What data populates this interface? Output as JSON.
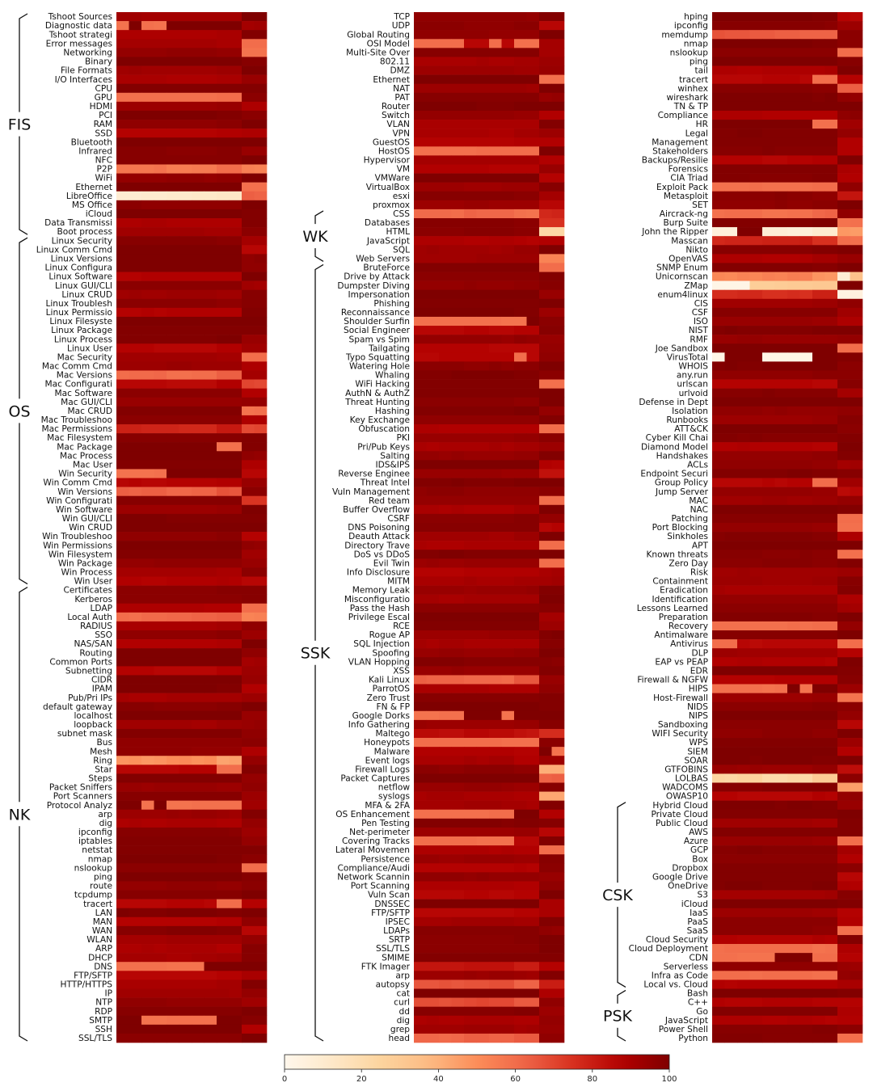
{
  "chart_data": {
    "type": "heatmap",
    "colormap": "OrRd",
    "colorbar": {
      "min": 0,
      "max": 100,
      "ticks": [
        0,
        20,
        40,
        60,
        80,
        100
      ],
      "orientation": "horizontal",
      "placement": "bottom"
    },
    "n_columns": 12,
    "panels": [
      {
        "rows": [
          "Tshoot Sources",
          "Diagnostic data",
          "Tshoot strategi",
          "Error messages",
          "Networking",
          "Binary",
          "File Formats",
          "I/O Interfaces",
          "CPU",
          "GPU",
          "HDMI",
          "PCI",
          "RAM",
          "SSD",
          "Bluetooth",
          "Infrared",
          "NFC",
          "P2P",
          "WiFi",
          "Ethernet",
          "LibreOffice",
          "MS Office",
          "iCloud",
          "Data Transmissi",
          "Boot process",
          "Linux Security",
          "Linux Comm Cmd",
          "Linux Versions",
          "Linux Configura",
          "Linux Software",
          "Linux GUI/CLI",
          "Linux CRUD",
          "Linux Troublesh",
          "Linux Permissio",
          "Linux Filesyste",
          "Linux Package",
          "Linux Process",
          "Linux User",
          "Mac Security",
          "Mac Comm Cmd",
          "Mac Versions",
          "Mac Configurati",
          "Mac Software",
          "Mac GUI/CLI",
          "Mac CRUD",
          "Mac Troubleshoo",
          "Mac Permissions",
          "Mac Filesystem",
          "Mac Package",
          "Mac Process",
          "Mac User",
          "Win Security",
          "Win Comm Cmd",
          "Win Versions",
          "Win Configurati",
          "Win Software",
          "Win GUI/CLI",
          "Win CRUD",
          "Win Troubleshoo",
          "Win Permissions",
          "Win Filesystem",
          "Win Package",
          "Win Process",
          "Win User",
          "Certificates",
          "Kerberos",
          "LDAP",
          "Local Auth",
          "RADIUS",
          "SSO",
          "NAS/SAN",
          "Routing",
          "Common Ports",
          "Subnetting",
          "CIDR",
          "IPAM",
          "Pub/Pri IPs",
          "default gateway",
          "localhost",
          "loopback",
          "subnet mask",
          "Bus",
          "Mesh",
          "Ring",
          "Star",
          "Steps",
          "Packet Sniffers",
          "Port Scanners",
          "Protocol Analyz",
          "arp",
          "dig",
          "ipconfig",
          "iptables",
          "netstat",
          "nmap",
          "nslookup",
          "ping",
          "route",
          "tcpdump",
          "tracert",
          "LAN",
          "MAN",
          "WAN",
          "WLAN",
          "ARP",
          "DHCP",
          "DNS",
          "FTP/SFTP",
          "HTTP/HTTPS",
          "IP",
          "NTP",
          "RDP",
          "SMTP",
          "SSH",
          "SSL/TLS"
        ],
        "groups": [
          {
            "name": "FIS",
            "first": "Tshoot Sources",
            "last": "Boot process"
          },
          {
            "name": "OS",
            "first": "Linux Security",
            "last": "Win User"
          },
          {
            "name": "NK",
            "first": "Certificates",
            "last": "SSL/TLS"
          }
        ]
      },
      {
        "rows": [
          "TCP",
          "UDP",
          "Global Routing",
          "OSI Model",
          "Multi-Site Over",
          "802.11",
          "DMZ",
          "Ethernet",
          "NAT",
          "PAT",
          "Router",
          "Switch",
          "VLAN",
          "VPN",
          "GuestOS",
          "HostOS",
          "Hypervisor",
          "VM",
          "VMWare",
          "VirtualBox",
          "esxi",
          "proxmox",
          "CSS",
          "Databases",
          "HTML",
          "JavaScript",
          "SQL",
          "Web Servers",
          "BruteForce",
          "Drive by Attack",
          "Dumpster Diving",
          "Impersonation",
          "Phishing",
          "Reconnaissance",
          "Shoulder Surfin",
          "Social Engineer",
          "Spam vs Spim",
          "Tailgating",
          "Typo Squatting",
          "Watering Hole",
          "Whaling",
          "WiFi Hacking",
          "AuthN & AuthZ",
          "Threat Hunting",
          "Hashing",
          "Key Exchange",
          "Obfuscation",
          "PKI",
          "Pri/Pub Keys",
          "Salting",
          "IDS&IPS",
          "Reverse Enginee",
          "Threat Intel",
          "Vuln Management",
          "Red team",
          "Buffer Overflow",
          "CSRF",
          "DNS Poisoning",
          "Deauth Attack",
          "Directory Trave",
          "DoS vs DDoS",
          "Evil Twin",
          "Info Disclosure",
          "MITM",
          "Memory Leak",
          "Misconfiguratio",
          "Pass the Hash",
          "Privilege Escal",
          "RCE",
          "Rogue AP",
          "SQL Injection",
          "Spoofing",
          "VLAN Hopping",
          "XSS",
          "Kali Linux",
          "ParrotOS",
          "Zero Trust",
          "FN & FP",
          "Google Dorks",
          "Info Gathering",
          "Maltego",
          "Honeypots",
          "Malware",
          "Event logs",
          "Firewall Logs",
          "Packet Captures",
          "netflow",
          "syslogs",
          "MFA & 2FA",
          "OS Enhancement",
          "Pen Testing",
          "Net-perimeter",
          "Covering Tracks",
          "Lateral Movemen",
          "Persistence",
          "Compliance/Audi",
          "Network Scannin",
          "Port Scanning",
          "Vuln Scan",
          "DNSSEC",
          "FTP/SFTP",
          "IPSEC",
          "LDAPs",
          "SRTP",
          "SSL/TLS",
          "SMIME",
          "FTK Imager",
          "arp",
          "autopsy",
          "cat",
          "curl",
          "dd",
          "dig",
          "grep",
          "head"
        ],
        "groups": [
          {
            "name": "WK",
            "first": "CSS",
            "last": "Web Servers"
          },
          {
            "name": "SSK",
            "first": "BruteForce",
            "last": "head"
          }
        ]
      },
      {
        "rows": [
          "hping",
          "ipconfig",
          "memdump",
          "nmap",
          "nslookup",
          "ping",
          "tail",
          "tracert",
          "winhex",
          "wireshark",
          "TN & TP",
          "Compliance",
          "HR",
          "Legal",
          "Management",
          "Stakeholders",
          "Backups/Resilie",
          "Forensics",
          "CIA Triad",
          "Exploit Pack",
          "Metasploit",
          "SET",
          "Aircrack-ng",
          "Burp Suite",
          "John the Ripper",
          "Masscan",
          "Nikto",
          "OpenVAS",
          "SNMP Enum",
          "Unicornscan",
          "ZMap",
          "enum4linux",
          "CIS",
          "CSF",
          "ISO",
          "NIST",
          "RMF",
          "Joe Sandbox",
          "VirusTotal",
          "WHOIS",
          "any.run",
          "urlscan",
          "urlvoid",
          "Defense in Dept",
          "Isolation",
          "Runbooks",
          "ATT&CK",
          "Cyber Kill Chai",
          "Diamond Model",
          "Handshakes",
          "ACLs",
          "Endpoint Securi",
          "Group Policy",
          "Jump Server",
          "MAC",
          "NAC",
          "Patching",
          "Port Blocking",
          "Sinkholes",
          "APT",
          "Known threats",
          "Zero Day",
          "Risk",
          "Containment",
          "Eradication",
          "Identification",
          "Lessons Learned",
          "Preparation",
          "Recovery",
          "Antimalware",
          "Antivirus",
          "DLP",
          "EAP vs PEAP",
          "EDR",
          "Firewall & NGFW",
          "HIPS",
          "Host-Firewall",
          "NIDS",
          "NIPS",
          "Sandboxing",
          "WIFI Security",
          "WPS",
          "SIEM",
          "SOAR",
          "GTFOBINS",
          "LOLBAS",
          "WADCOMS",
          "OWASP10",
          "Hybrid Cloud",
          "Private Cloud",
          "Public Cloud",
          "AWS",
          "Azure",
          "GCP",
          "Box",
          "Dropbox",
          "Google Drive",
          "OneDrive",
          "S3",
          "iCloud",
          "IaaS",
          "PaaS",
          "SaaS",
          "Cloud Security",
          "Cloud Deployment",
          "CDN",
          "Serverless",
          "Infra as Code",
          "Local vs. Cloud",
          "Bash",
          "C++",
          "Go",
          "JavaScript",
          "Power Shell",
          "Python"
        ],
        "groups": [
          {
            "name": "CSK",
            "first": "Hybrid Cloud",
            "last": "Local vs. Cloud"
          },
          {
            "name": "PSK",
            "first": "Bash",
            "last": "Python"
          }
        ]
      }
    ],
    "cell_value_note": "",
    "cell_values_estimated": true
  }
}
